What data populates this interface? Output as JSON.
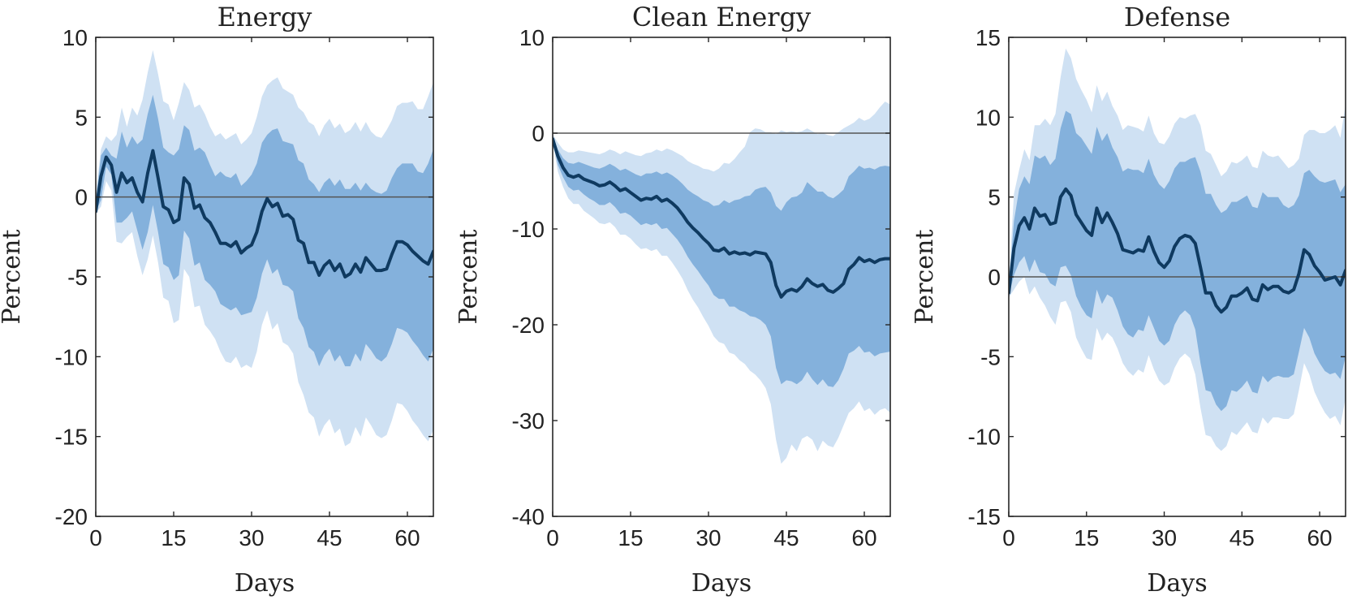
{
  "figure": {
    "band_colors": {
      "outer": "#cfe1f3",
      "inner": "#84b1dc",
      "line": "#0f3a60",
      "zero_line": "#555555"
    }
  },
  "chart_data": [
    {
      "type": "line",
      "title": "Energy",
      "xlabel": "Days",
      "ylabel": "Percent",
      "xlim": [
        0,
        65
      ],
      "ylim": [
        -20,
        10
      ],
      "xticks": [
        0,
        15,
        30,
        45,
        60
      ],
      "yticks": [
        -20,
        -15,
        -10,
        -5,
        0,
        5,
        10
      ],
      "x": [
        0,
        1,
        2,
        3,
        4,
        5,
        6,
        7,
        8,
        9,
        10,
        11,
        12,
        13,
        14,
        15,
        16,
        17,
        18,
        19,
        20,
        21,
        22,
        23,
        24,
        25,
        26,
        27,
        28,
        29,
        30,
        31,
        32,
        33,
        34,
        35,
        36,
        37,
        38,
        39,
        40,
        41,
        42,
        43,
        44,
        45,
        46,
        47,
        48,
        49,
        50,
        51,
        52,
        53,
        54,
        55,
        56,
        57,
        58,
        59,
        60,
        61,
        62,
        63,
        64,
        65
      ],
      "median": [
        -0.9,
        1.3,
        2.5,
        2.0,
        0.3,
        1.5,
        0.9,
        1.2,
        0.3,
        -0.3,
        1.5,
        2.9,
        1.2,
        -0.6,
        -0.8,
        -1.6,
        -1.4,
        1.2,
        0.8,
        -0.7,
        -0.5,
        -1.3,
        -1.6,
        -2.2,
        -2.9,
        -2.9,
        -3.1,
        -2.8,
        -3.5,
        -3.2,
        -3.0,
        -2.2,
        -0.9,
        -0.1,
        -0.6,
        -0.4,
        -1.2,
        -1.1,
        -1.4,
        -2.7,
        -2.9,
        -4.1,
        -4.1,
        -4.9,
        -4.3,
        -4.0,
        -4.6,
        -4.2,
        -5.0,
        -4.8,
        -4.2,
        -4.7,
        -3.8,
        -4.2,
        -4.6,
        -4.6,
        -4.5,
        -3.6,
        -2.8,
        -2.8,
        -3.0,
        -3.4,
        -3.7,
        -4.0,
        -4.2,
        -3.4
      ],
      "inner_upper": [
        -0.3,
        2.6,
        3.1,
        2.6,
        2.4,
        4.1,
        3.1,
        3.8,
        3.3,
        3.6,
        5.2,
        6.4,
        4.9,
        3.1,
        2.8,
        2.6,
        3.0,
        4.5,
        4.2,
        2.9,
        3.1,
        2.8,
        2.0,
        1.3,
        1.6,
        1.3,
        1.2,
        1.5,
        0.7,
        1.0,
        1.4,
        2.1,
        3.4,
        3.9,
        4.2,
        4.3,
        3.5,
        3.4,
        3.3,
        2.3,
        2.1,
        1.1,
        0.8,
        0.3,
        0.9,
        1.2,
        0.7,
        1.1,
        0.5,
        0.5,
        0.9,
        0.4,
        0.9,
        0.5,
        0.3,
        0.2,
        0.4,
        1.2,
        1.8,
        2.1,
        2.1,
        2.1,
        1.6,
        1.5,
        2.1,
        3.0
      ],
      "inner_lower": [
        -0.9,
        -0.2,
        1.9,
        1.4,
        -1.6,
        -1.6,
        -1.3,
        -0.9,
        -2.1,
        -3.3,
        -2.2,
        -0.5,
        -2.2,
        -4.2,
        -4.4,
        -5.2,
        -4.9,
        -2.1,
        -2.6,
        -4.3,
        -4.1,
        -5.2,
        -5.5,
        -5.9,
        -6.7,
        -6.9,
        -7.1,
        -6.9,
        -7.4,
        -7.3,
        -7.2,
        -6.3,
        -4.8,
        -3.9,
        -4.8,
        -4.5,
        -5.5,
        -5.6,
        -5.9,
        -7.6,
        -8.2,
        -9.4,
        -9.7,
        -10.6,
        -9.9,
        -9.5,
        -10.3,
        -9.9,
        -10.6,
        -10.6,
        -9.8,
        -10.3,
        -9.2,
        -9.6,
        -10.1,
        -10.3,
        -10.0,
        -9.2,
        -8.2,
        -8.3,
        -8.5,
        -9.0,
        -9.4,
        -9.9,
        -10.3,
        -9.5
      ],
      "outer_upper": [
        0.1,
        3.0,
        3.8,
        3.5,
        3.9,
        5.6,
        4.4,
        5.6,
        5.1,
        6.1,
        7.8,
        9.2,
        7.7,
        6.0,
        5.8,
        4.8,
        5.9,
        7.2,
        6.7,
        5.6,
        5.8,
        5.2,
        4.4,
        3.8,
        4.0,
        3.6,
        3.8,
        4.0,
        3.3,
        3.6,
        4.0,
        5.0,
        6.3,
        7.0,
        7.3,
        7.5,
        6.8,
        6.6,
        6.4,
        5.6,
        5.3,
        4.7,
        4.5,
        3.8,
        4.5,
        4.9,
        4.3,
        4.6,
        4.0,
        4.2,
        4.7,
        4.1,
        4.7,
        4.1,
        3.8,
        3.7,
        4.2,
        4.8,
        5.7,
        5.9,
        5.9,
        6.0,
        5.5,
        5.5,
        6.3,
        7.2
      ],
      "outer_lower": [
        -1.0,
        -0.6,
        1.0,
        0.4,
        -2.8,
        -2.9,
        -2.5,
        -2.2,
        -3.7,
        -4.9,
        -3.9,
        -2.4,
        -4.1,
        -6.3,
        -6.5,
        -7.9,
        -7.7,
        -4.5,
        -5.0,
        -6.9,
        -6.8,
        -8.0,
        -8.4,
        -8.9,
        -9.7,
        -10.3,
        -10.4,
        -10.0,
        -10.7,
        -10.5,
        -10.7,
        -9.7,
        -8.0,
        -7.1,
        -8.3,
        -7.9,
        -9.1,
        -9.3,
        -9.8,
        -11.6,
        -12.4,
        -13.5,
        -13.8,
        -15.0,
        -14.3,
        -13.9,
        -14.8,
        -14.5,
        -15.6,
        -15.4,
        -14.4,
        -15.0,
        -13.8,
        -14.3,
        -14.9,
        -15.1,
        -14.9,
        -14.0,
        -12.9,
        -13.0,
        -13.4,
        -14.0,
        -14.4,
        -14.9,
        -15.3,
        -14.6
      ]
    },
    {
      "type": "line",
      "title": "Clean Energy",
      "xlabel": "Days",
      "ylabel": "Percent",
      "xlim": [
        0,
        65
      ],
      "ylim": [
        -40,
        10
      ],
      "xticks": [
        0,
        15,
        30,
        45,
        60
      ],
      "yticks": [
        -40,
        -30,
        -20,
        -10,
        0,
        10
      ],
      "x": [
        0,
        1,
        2,
        3,
        4,
        5,
        6,
        7,
        8,
        9,
        10,
        11,
        12,
        13,
        14,
        15,
        16,
        17,
        18,
        19,
        20,
        21,
        22,
        23,
        24,
        25,
        26,
        27,
        28,
        29,
        30,
        31,
        32,
        33,
        34,
        35,
        36,
        37,
        38,
        39,
        40,
        41,
        42,
        43,
        44,
        45,
        46,
        47,
        48,
        49,
        50,
        51,
        52,
        53,
        54,
        55,
        56,
        57,
        58,
        59,
        60,
        61,
        62,
        63,
        64,
        65
      ],
      "median": [
        -0.6,
        -2.4,
        -3.6,
        -4.4,
        -4.6,
        -4.4,
        -4.8,
        -5.0,
        -5.2,
        -5.5,
        -5.4,
        -5.1,
        -5.5,
        -6.0,
        -5.8,
        -6.2,
        -6.6,
        -7.0,
        -6.8,
        -6.9,
        -6.6,
        -7.1,
        -6.9,
        -7.3,
        -7.8,
        -8.5,
        -9.3,
        -9.9,
        -10.4,
        -11.0,
        -11.5,
        -12.2,
        -12.3,
        -12.0,
        -12.6,
        -12.4,
        -12.6,
        -12.5,
        -12.7,
        -12.4,
        -12.5,
        -12.6,
        -13.5,
        -15.9,
        -17.1,
        -16.5,
        -16.3,
        -16.5,
        -16.0,
        -15.2,
        -15.7,
        -16.0,
        -15.8,
        -16.4,
        -16.6,
        -16.2,
        -15.7,
        -14.2,
        -13.7,
        -13.0,
        -13.4,
        -13.2,
        -13.5,
        -13.2,
        -13.1,
        -13.1
      ],
      "inner_upper": [
        -0.3,
        -1.7,
        -2.6,
        -3.1,
        -3.2,
        -3.0,
        -3.2,
        -3.4,
        -3.6,
        -3.7,
        -3.5,
        -3.2,
        -3.5,
        -3.9,
        -3.7,
        -4.0,
        -4.3,
        -4.5,
        -4.2,
        -4.2,
        -4.0,
        -4.3,
        -4.1,
        -4.4,
        -4.8,
        -5.3,
        -5.9,
        -6.3,
        -6.6,
        -7.0,
        -7.2,
        -7.6,
        -7.5,
        -7.0,
        -7.3,
        -7.0,
        -6.9,
        -6.6,
        -6.5,
        -5.9,
        -5.7,
        -5.6,
        -6.2,
        -7.6,
        -8.1,
        -7.2,
        -6.7,
        -6.6,
        -6.2,
        -5.1,
        -5.6,
        -6.1,
        -6.1,
        -6.6,
        -6.8,
        -6.4,
        -5.9,
        -4.5,
        -4.0,
        -3.4,
        -3.7,
        -3.6,
        -3.8,
        -3.5,
        -3.4,
        -3.5
      ],
      "inner_lower": [
        -0.8,
        -3.3,
        -4.6,
        -5.6,
        -6.0,
        -5.9,
        -6.4,
        -6.8,
        -7.1,
        -7.5,
        -7.5,
        -7.2,
        -7.7,
        -8.4,
        -8.3,
        -8.6,
        -9.1,
        -9.6,
        -9.4,
        -9.6,
        -9.4,
        -10.0,
        -9.9,
        -10.5,
        -11.1,
        -11.9,
        -12.9,
        -13.7,
        -14.4,
        -15.2,
        -15.9,
        -16.9,
        -17.3,
        -17.3,
        -18.1,
        -18.1,
        -18.5,
        -18.7,
        -19.1,
        -19.2,
        -19.5,
        -20.0,
        -21.2,
        -24.5,
        -26.2,
        -25.8,
        -25.9,
        -26.2,
        -25.8,
        -24.9,
        -25.7,
        -26.3,
        -25.7,
        -26.4,
        -26.5,
        -25.8,
        -24.6,
        -23.0,
        -22.7,
        -22.2,
        -22.9,
        -22.8,
        -23.3,
        -23.0,
        -22.9,
        -22.8
      ],
      "outer_upper": [
        -0.1,
        -1.0,
        -1.7,
        -2.0,
        -2.0,
        -1.8,
        -1.9,
        -2.0,
        -2.1,
        -2.2,
        -2.0,
        -1.7,
        -1.9,
        -2.2,
        -1.9,
        -2.1,
        -2.3,
        -2.4,
        -2.1,
        -2.0,
        -1.7,
        -1.9,
        -1.6,
        -1.8,
        -2.1,
        -2.4,
        -2.9,
        -3.2,
        -3.4,
        -3.7,
        -3.8,
        -4.0,
        -3.7,
        -3.1,
        -3.2,
        -2.7,
        -2.0,
        -1.4,
        0.1,
        0.5,
        0.4,
        0.1,
        0.1,
        -0.1,
        0.3,
        0.1,
        0.2,
        0.1,
        0.2,
        0.5,
        0.2,
        -0.1,
        0.0,
        -0.2,
        -0.3,
        0.1,
        0.5,
        0.8,
        1.1,
        1.6,
        1.3,
        1.5,
        2.0,
        2.7,
        3.3,
        3.0
      ],
      "outer_lower": [
        -1.0,
        -4.0,
        -5.6,
        -6.8,
        -7.4,
        -7.4,
        -8.1,
        -8.5,
        -8.9,
        -9.4,
        -9.5,
        -9.3,
        -9.8,
        -10.6,
        -10.6,
        -11.0,
        -11.6,
        -12.1,
        -12.0,
        -12.3,
        -12.1,
        -12.8,
        -12.8,
        -13.5,
        -14.3,
        -15.2,
        -16.4,
        -17.4,
        -18.2,
        -19.2,
        -20.1,
        -21.2,
        -21.8,
        -22.0,
        -22.9,
        -23.1,
        -23.7,
        -24.1,
        -24.8,
        -25.2,
        -25.8,
        -26.6,
        -28.3,
        -32.0,
        -34.5,
        -33.9,
        -32.5,
        -33.2,
        -31.9,
        -31.6,
        -32.0,
        -33.2,
        -32.1,
        -32.6,
        -32.8,
        -31.8,
        -30.5,
        -29.2,
        -28.7,
        -28.0,
        -29.0,
        -28.7,
        -29.4,
        -28.9,
        -28.7,
        -29.2
      ]
    },
    {
      "type": "line",
      "title": "Defense",
      "xlabel": "Days",
      "ylabel": "Percent",
      "xlim": [
        0,
        65
      ],
      "ylim": [
        -15,
        15
      ],
      "xticks": [
        0,
        15,
        30,
        45,
        60
      ],
      "yticks": [
        -15,
        -10,
        -5,
        0,
        5,
        10,
        15
      ],
      "x": [
        0,
        1,
        2,
        3,
        4,
        5,
        6,
        7,
        8,
        9,
        10,
        11,
        12,
        13,
        14,
        15,
        16,
        17,
        18,
        19,
        20,
        21,
        22,
        23,
        24,
        25,
        26,
        27,
        28,
        29,
        30,
        31,
        32,
        33,
        34,
        35,
        36,
        37,
        38,
        39,
        40,
        41,
        42,
        43,
        44,
        45,
        46,
        47,
        48,
        49,
        50,
        51,
        52,
        53,
        54,
        55,
        56,
        57,
        58,
        59,
        60,
        61,
        62,
        63,
        64,
        65
      ],
      "median": [
        -1.0,
        1.8,
        3.2,
        3.7,
        3.0,
        4.3,
        3.8,
        3.9,
        3.3,
        3.4,
        5.0,
        5.5,
        5.1,
        3.9,
        3.4,
        2.9,
        2.6,
        4.3,
        3.4,
        4.0,
        3.4,
        2.7,
        1.7,
        1.6,
        1.5,
        1.7,
        1.6,
        2.5,
        1.6,
        0.9,
        0.6,
        1.0,
        1.9,
        2.4,
        2.6,
        2.5,
        2.1,
        0.6,
        -1.0,
        -1.0,
        -1.8,
        -2.2,
        -1.9,
        -1.2,
        -1.2,
        -1.0,
        -0.7,
        -1.4,
        -1.5,
        -0.5,
        -0.8,
        -0.6,
        -0.6,
        -0.9,
        -1.0,
        -0.8,
        0.2,
        1.7,
        1.4,
        0.7,
        0.3,
        -0.2,
        -0.1,
        0.0,
        -0.5,
        0.4
      ],
      "inner_upper": [
        -0.6,
        3.5,
        5.5,
        6.3,
        5.8,
        7.6,
        7.4,
        7.6,
        7.0,
        7.4,
        9.3,
        10.4,
        10.2,
        9.0,
        8.7,
        8.2,
        7.7,
        9.4,
        8.5,
        9.0,
        8.1,
        7.5,
        6.6,
        6.8,
        6.7,
        6.7,
        6.5,
        7.4,
        6.4,
        5.8,
        5.5,
        6.0,
        6.8,
        7.2,
        7.2,
        7.4,
        7.5,
        6.6,
        5.2,
        5.2,
        4.5,
        4.0,
        4.2,
        4.7,
        4.7,
        4.9,
        5.1,
        4.4,
        4.3,
        5.3,
        5.0,
        5.0,
        5.0,
        4.5,
        4.3,
        4.5,
        5.1,
        6.5,
        6.7,
        6.3,
        6.0,
        5.9,
        6.0,
        6.1,
        5.3,
        5.8
      ],
      "inner_lower": [
        -1.2,
        0.1,
        0.9,
        1.3,
        0.3,
        1.1,
        0.3,
        0.2,
        -0.4,
        -0.6,
        0.6,
        0.7,
        0.1,
        -1.2,
        -1.9,
        -2.4,
        -2.6,
        -0.8,
        -1.7,
        -1.1,
        -1.3,
        -2.1,
        -3.1,
        -3.6,
        -3.8,
        -3.3,
        -3.4,
        -2.4,
        -3.2,
        -4.0,
        -4.3,
        -4.0,
        -3.0,
        -2.4,
        -2.1,
        -2.4,
        -3.3,
        -5.4,
        -7.1,
        -7.2,
        -8.0,
        -8.4,
        -8.1,
        -7.1,
        -7.2,
        -6.9,
        -6.5,
        -7.2,
        -7.3,
        -6.2,
        -6.6,
        -6.3,
        -6.2,
        -6.3,
        -6.3,
        -6.1,
        -4.7,
        -3.2,
        -3.8,
        -4.8,
        -5.4,
        -5.9,
        -6.1,
        -6.0,
        -6.4,
        -5.0
      ],
      "outer_upper": [
        -0.4,
        5.2,
        6.7,
        8.0,
        7.3,
        9.5,
        9.5,
        9.9,
        9.5,
        10.2,
        12.5,
        14.3,
        13.7,
        12.4,
        11.7,
        11.1,
        10.3,
        12.0,
        11.0,
        11.6,
        10.7,
        10.1,
        9.2,
        9.5,
        9.4,
        9.3,
        9.1,
        10.1,
        9.0,
        8.4,
        8.3,
        8.8,
        9.6,
        10.0,
        9.9,
        10.1,
        10.2,
        9.5,
        7.9,
        7.7,
        7.0,
        6.3,
        6.6,
        7.2,
        7.1,
        7.3,
        7.6,
        6.9,
        6.8,
        7.9,
        7.6,
        7.5,
        7.6,
        7.2,
        6.8,
        7.0,
        7.4,
        8.9,
        9.2,
        9.2,
        9.0,
        9.0,
        9.2,
        9.5,
        8.7,
        10.8
      ],
      "outer_lower": [
        -1.3,
        -0.8,
        -0.3,
        0.0,
        -1.1,
        -0.6,
        -1.3,
        -1.8,
        -2.5,
        -3.0,
        -1.6,
        -1.5,
        -2.2,
        -3.8,
        -4.5,
        -5.1,
        -5.2,
        -3.2,
        -4.0,
        -3.5,
        -3.8,
        -4.5,
        -5.4,
        -5.9,
        -6.2,
        -5.8,
        -6.0,
        -4.9,
        -5.8,
        -6.5,
        -6.8,
        -6.6,
        -5.7,
        -5.1,
        -4.8,
        -5.1,
        -6.1,
        -8.2,
        -9.9,
        -10.0,
        -10.6,
        -10.9,
        -10.6,
        -9.7,
        -9.9,
        -9.5,
        -9.1,
        -9.7,
        -9.8,
        -8.8,
        -9.2,
        -8.8,
        -8.8,
        -8.9,
        -8.9,
        -8.6,
        -7.1,
        -5.4,
        -6.1,
        -7.2,
        -7.9,
        -8.5,
        -8.9,
        -8.7,
        -9.3,
        -7.6
      ]
    }
  ]
}
